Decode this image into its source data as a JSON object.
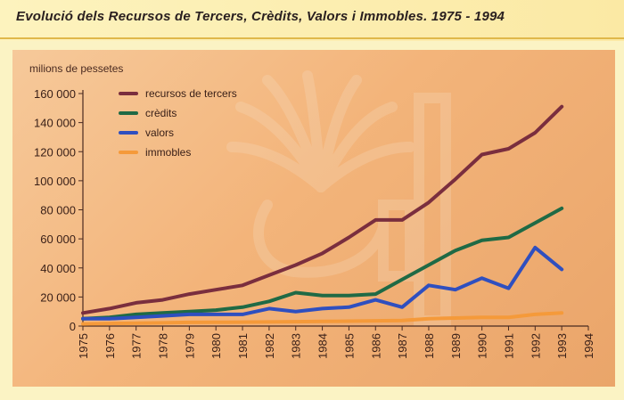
{
  "page": {
    "title": "Evolució dels Recursos de Tercers, Crèdits, Valors i Immobles. 1975 - 1994"
  },
  "chart_data": {
    "type": "line",
    "title": "Evolució dels Recursos de Tercers, Crèdits, Valors i Immobles. 1975 - 1994",
    "ylabel": "milions de pessetes",
    "xlabel": "",
    "ylim": [
      0,
      160000
    ],
    "xlim": [
      1975,
      1994
    ],
    "grid": false,
    "legend_position": "top-left",
    "y_ticks": [
      "0",
      "20 000",
      "40 000",
      "60 000",
      "80 000",
      "100 000",
      "120 000",
      "140 000",
      "160 000"
    ],
    "x_ticks": [
      "1975",
      "1976",
      "1977",
      "1978",
      "1979",
      "1980",
      "1981",
      "1982",
      "1983",
      "1984",
      "1985",
      "1986",
      "1987",
      "1988",
      "1989",
      "1990",
      "1991",
      "1992",
      "1993",
      "1994"
    ],
    "x": [
      1975,
      1976,
      1977,
      1978,
      1979,
      1980,
      1981,
      1982,
      1983,
      1984,
      1985,
      1986,
      1987,
      1988,
      1989,
      1990,
      1991,
      1992,
      1993
    ],
    "series": [
      {
        "name": "recursos de tercers",
        "color": "#7a2e3e",
        "values": [
          9000,
          12000,
          16000,
          18000,
          22000,
          25000,
          28000,
          35000,
          42000,
          50000,
          61000,
          73000,
          73000,
          85000,
          101000,
          118000,
          122000,
          133000,
          151000
        ]
      },
      {
        "name": "crèdits",
        "color": "#1f6a45",
        "values": [
          5000,
          6000,
          8000,
          9000,
          10000,
          11000,
          13000,
          17000,
          23000,
          21000,
          21000,
          22000,
          32000,
          42000,
          52000,
          59000,
          61000,
          71000,
          81000
        ]
      },
      {
        "name": "valors",
        "color": "#2f4fbf",
        "values": [
          5000,
          5000,
          6000,
          7000,
          8000,
          8000,
          8000,
          12000,
          10000,
          12000,
          13000,
          18000,
          13000,
          28000,
          25000,
          33000,
          26000,
          54000,
          39000
        ]
      },
      {
        "name": "immobles",
        "color": "#f59a3a",
        "values": [
          1500,
          1800,
          2000,
          2200,
          2500,
          2600,
          2700,
          2800,
          3000,
          3200,
          3400,
          3600,
          3800,
          5000,
          5500,
          6000,
          6000,
          8000,
          9000
        ]
      }
    ]
  }
}
